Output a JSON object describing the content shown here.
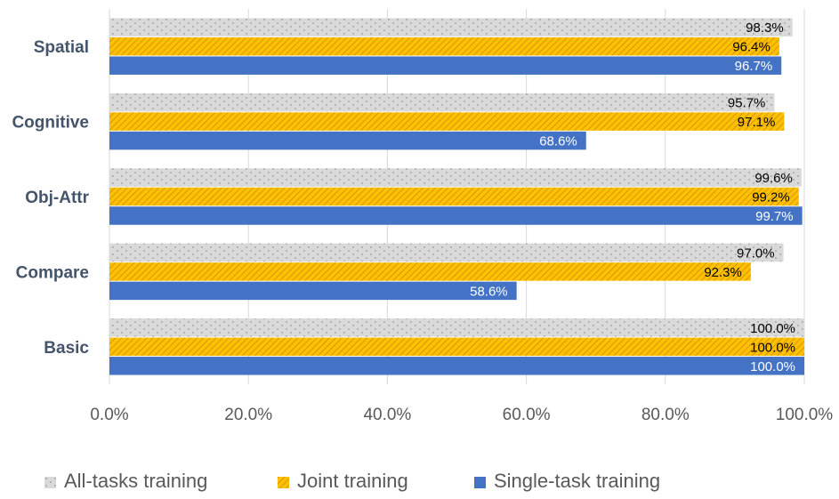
{
  "chart_data": {
    "type": "bar",
    "orientation": "horizontal",
    "categories": [
      "Spatial",
      "Cognitive",
      "Obj-Attr",
      "Compare",
      "Basic"
    ],
    "series": [
      {
        "name": "All-tasks training",
        "values": [
          98.3,
          95.7,
          99.6,
          97.0,
          100.0
        ],
        "labels": [
          "98.3%",
          "95.7%",
          "99.6%",
          "97.0%",
          "100.0%"
        ]
      },
      {
        "name": "Joint training",
        "values": [
          96.4,
          97.1,
          99.2,
          92.3,
          100.0
        ],
        "labels": [
          "96.4%",
          "97.1%",
          "99.2%",
          "92.3%",
          "100.0%"
        ]
      },
      {
        "name": "Single-task training",
        "values": [
          96.7,
          68.6,
          99.7,
          58.6,
          100.0
        ],
        "labels": [
          "96.7%",
          "68.6%",
          "99.7%",
          "58.6%",
          "100.0%"
        ]
      }
    ],
    "x_ticks": [
      "0.0%",
      "20.0%",
      "40.0%",
      "60.0%",
      "80.0%",
      "100.0%"
    ],
    "xlim": [
      0,
      100
    ],
    "title": "",
    "xlabel": "",
    "ylabel": "",
    "grid": "vertical",
    "legend_position": "bottom",
    "colors": {
      "All-tasks training": "#d9d9d9",
      "Joint training": "#ffc000",
      "Single-task training": "#4472c4",
      "grid": "#d9d9d9"
    }
  }
}
